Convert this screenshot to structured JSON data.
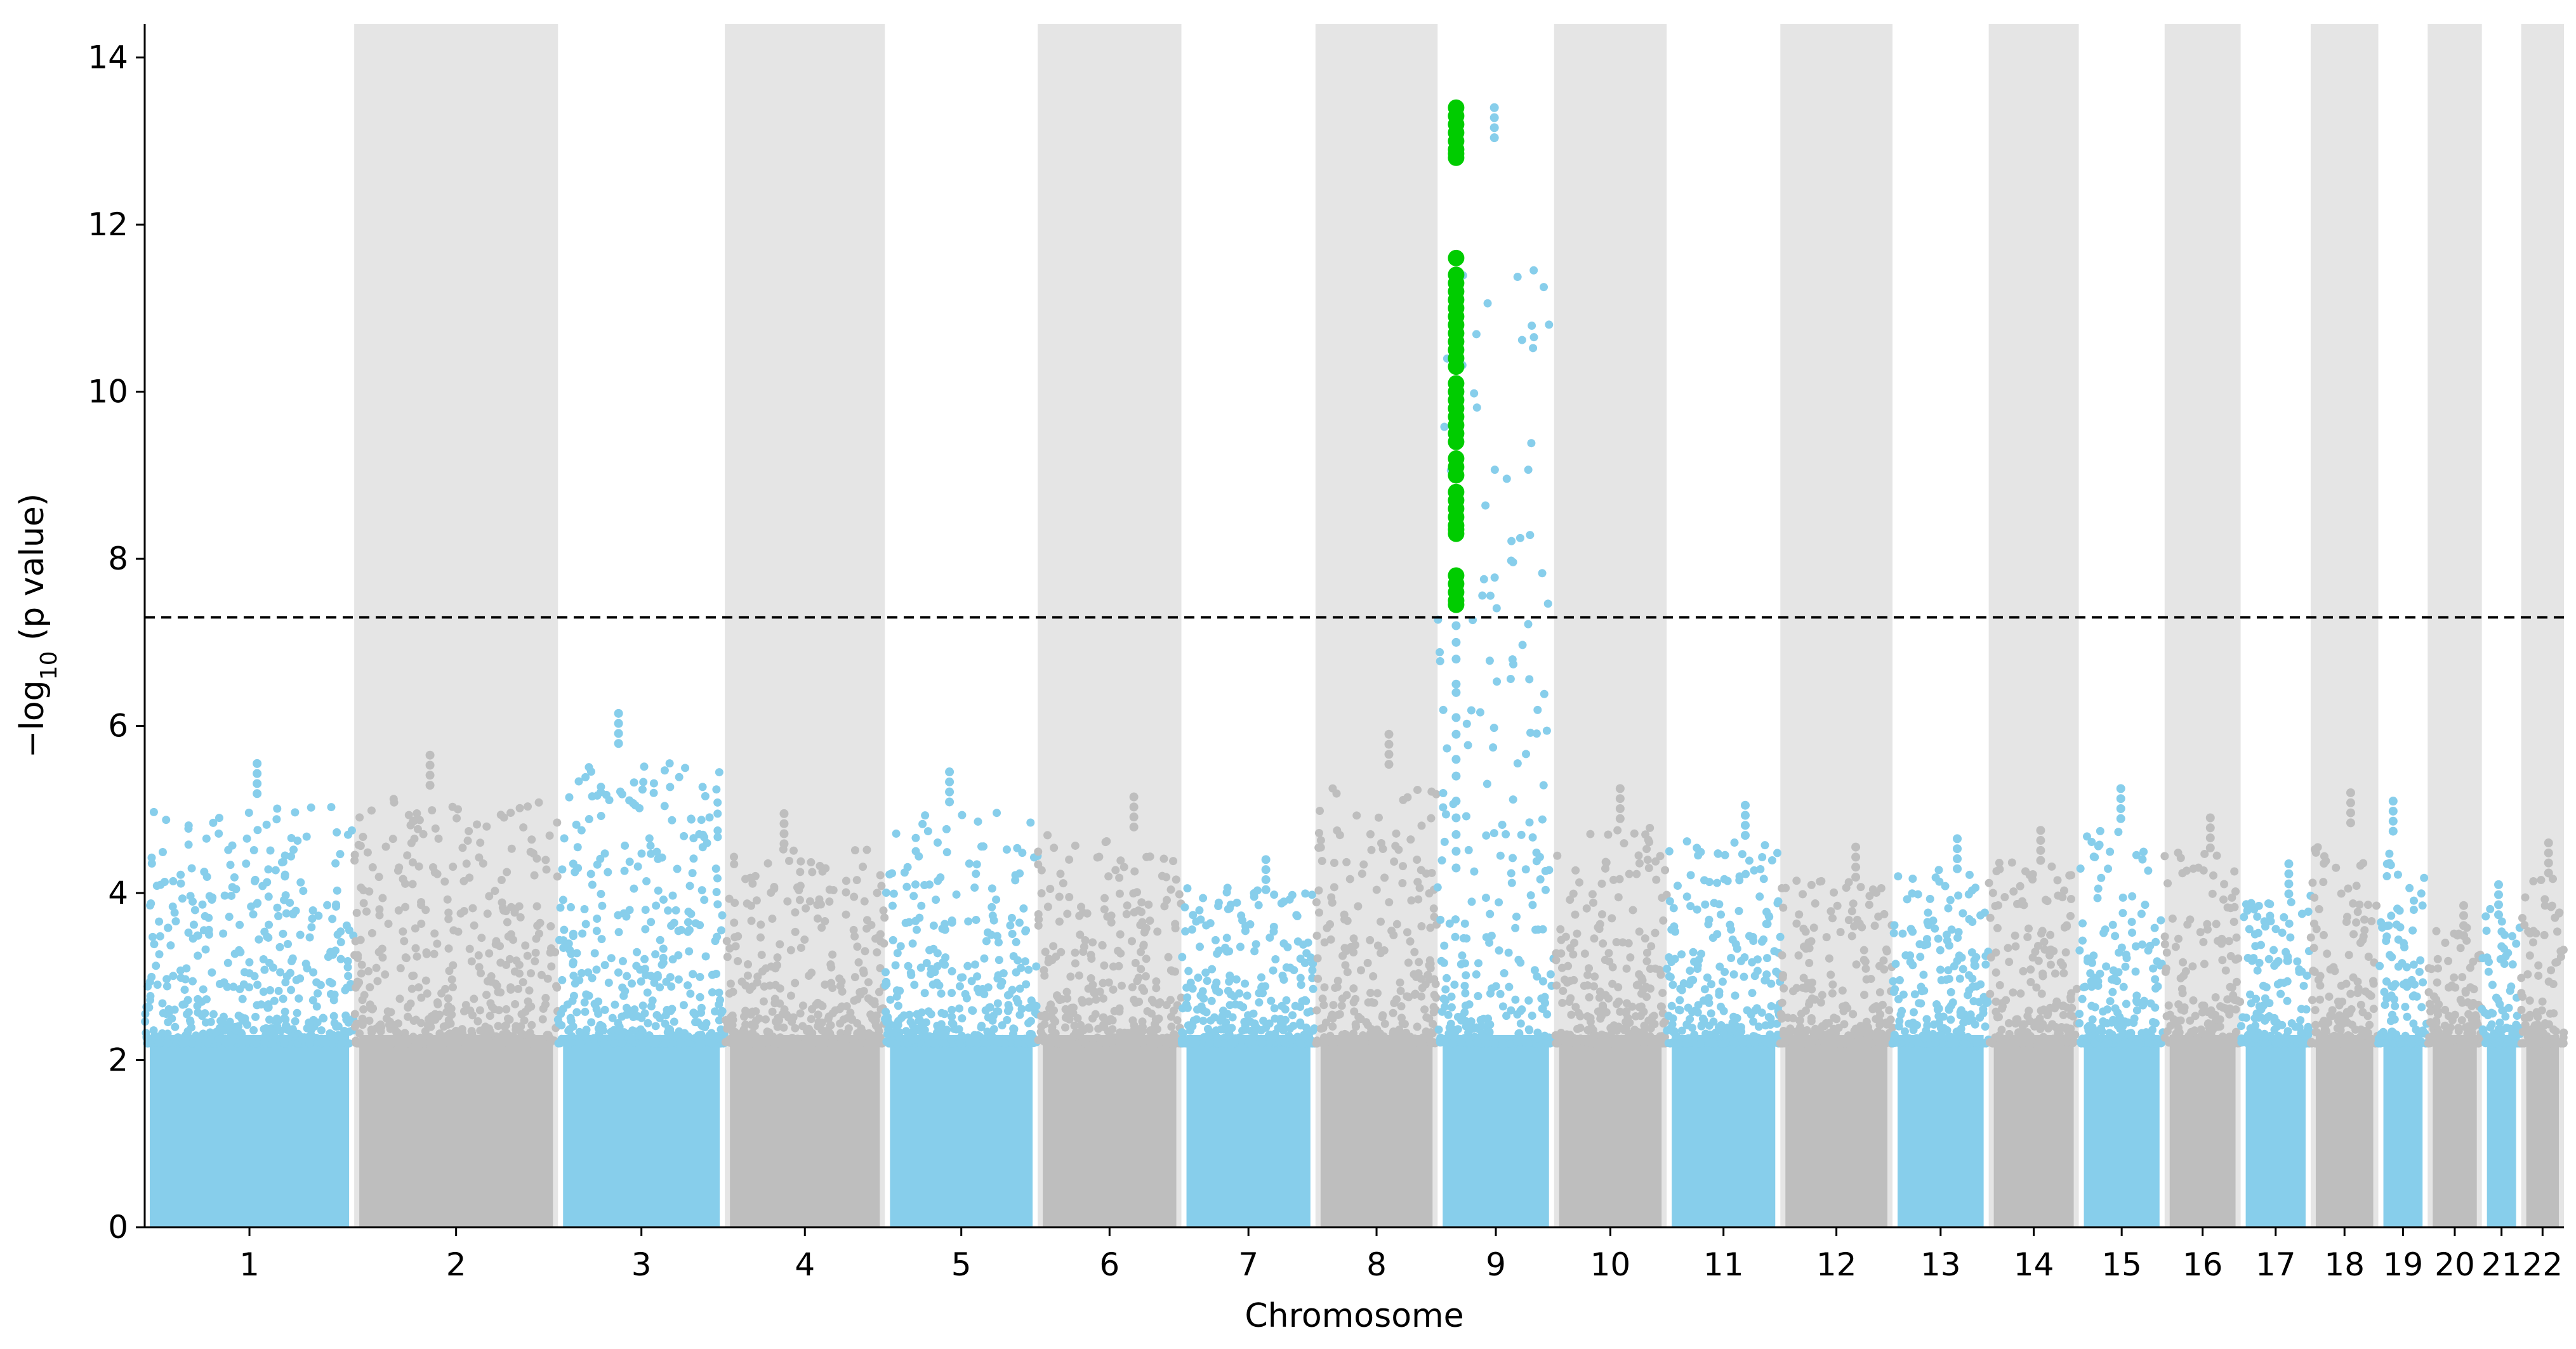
{
  "chart_data": {
    "type": "scatter",
    "subtype": "manhattan",
    "title": "",
    "xlabel": "Chromosome",
    "ylabel": "−log₁₀ (p value)",
    "ylabel_parts": {
      "prefix": "−log",
      "subscript": "10",
      "suffix": " (p value)"
    },
    "ylim": [
      0,
      14.4
    ],
    "yticks": [
      0,
      2,
      4,
      6,
      8,
      10,
      12,
      14
    ],
    "grid": false,
    "legend": "none",
    "colors": {
      "odd_chromosome_points": "#87ceeb",
      "even_chromosome_points": "#bebebe",
      "significant_points": "#00cc00",
      "even_chromosome_band": "#e5e5e5",
      "threshold_line": "#000000"
    },
    "significance_threshold": 7.3,
    "threshold_style": "dashed",
    "chromosomes": [
      {
        "label": "1",
        "start": 0,
        "end": 248.96,
        "peak": 5.55
      },
      {
        "label": "2",
        "start": 248.96,
        "end": 491.16,
        "peak": 5.65
      },
      {
        "label": "3",
        "start": 491.16,
        "end": 689.45,
        "peak": 6.15
      },
      {
        "label": "4",
        "start": 689.45,
        "end": 879.67,
        "peak": 4.95
      },
      {
        "label": "5",
        "start": 879.67,
        "end": 1061.21,
        "peak": 5.45
      },
      {
        "label": "6",
        "start": 1061.21,
        "end": 1232.02,
        "peak": 5.15
      },
      {
        "label": "7",
        "start": 1232.02,
        "end": 1391.37,
        "peak": 4.4
      },
      {
        "label": "8",
        "start": 1391.37,
        "end": 1536.51,
        "peak": 5.9
      },
      {
        "label": "9",
        "start": 1536.51,
        "end": 1674.9,
        "peak": 13.4
      },
      {
        "label": "10",
        "start": 1674.9,
        "end": 1808.7,
        "peak": 5.25
      },
      {
        "label": "11",
        "start": 1808.7,
        "end": 1943.79,
        "peak": 5.05
      },
      {
        "label": "12",
        "start": 1943.79,
        "end": 2077.07,
        "peak": 4.55
      },
      {
        "label": "13",
        "start": 2077.07,
        "end": 2191.44,
        "peak": 4.65
      },
      {
        "label": "14",
        "start": 2191.44,
        "end": 2298.48,
        "peak": 4.75
      },
      {
        "label": "15",
        "start": 2298.48,
        "end": 2400.47,
        "peak": 5.25
      },
      {
        "label": "16",
        "start": 2400.47,
        "end": 2490.81,
        "peak": 4.9
      },
      {
        "label": "17",
        "start": 2490.81,
        "end": 2574.07,
        "peak": 4.35
      },
      {
        "label": "18",
        "start": 2574.07,
        "end": 2654.44,
        "peak": 5.2
      },
      {
        "label": "19",
        "start": 2654.44,
        "end": 2713.06,
        "peak": 5.1
      },
      {
        "label": "20",
        "start": 2713.06,
        "end": 2777.5,
        "peak": 3.85
      },
      {
        "label": "21",
        "start": 2777.5,
        "end": 2824.21,
        "peak": 4.1
      },
      {
        "label": "22",
        "start": 2824.21,
        "end": 2875.03,
        "peak": 4.6
      }
    ],
    "significant_locus": {
      "chromosome": "9",
      "position": 1558.5,
      "values": [
        13.4,
        13.3,
        13.2,
        13.1,
        13.0,
        12.9,
        12.85,
        12.8,
        11.6,
        11.4,
        11.3,
        11.2,
        11.1,
        11.0,
        10.9,
        10.8,
        10.7,
        10.6,
        10.5,
        10.4,
        10.3,
        10.1,
        10.0,
        9.9,
        9.8,
        9.7,
        9.6,
        9.5,
        9.4,
        9.2,
        9.1,
        9.0,
        8.8,
        8.7,
        8.6,
        8.5,
        8.4,
        8.35,
        8.3,
        7.8,
        7.7,
        7.6,
        7.5,
        7.45
      ],
      "sub_threshold_values": [
        7.2,
        7.0,
        6.8,
        6.5,
        6.4,
        6.1,
        5.9,
        5.6,
        5.4,
        5.1,
        4.9,
        4.7,
        4.5,
        4.3
      ]
    }
  }
}
